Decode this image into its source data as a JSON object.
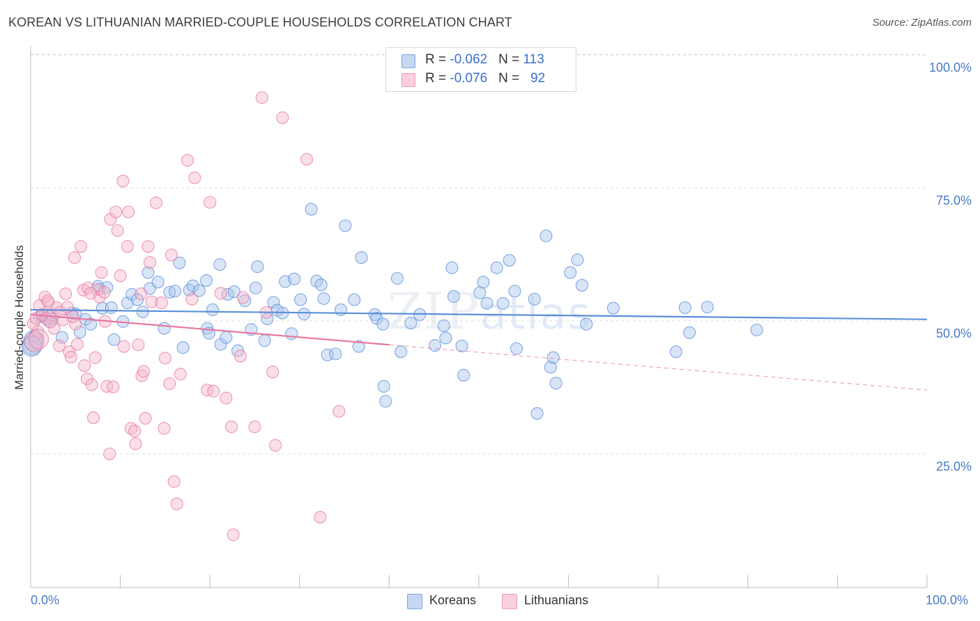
{
  "title": "KOREAN VS LITHUANIAN MARRIED-COUPLE HOUSEHOLDS CORRELATION CHART",
  "source": "Source: ZipAtlas.com",
  "watermark": {
    "zip": "ZIP",
    "atlas": "atlas"
  },
  "legend_top": {
    "rows": [
      {
        "r_label": "R = ",
        "r_value": "-0.062",
        "n_label": "N = ",
        "n_value": "113",
        "color": "#a9c5ee"
      },
      {
        "r_label": "R = ",
        "r_value": "-0.076",
        "n_label": "N = ",
        "n_value": "92",
        "color": "#f5b8cb"
      }
    ]
  },
  "legend_bottom": [
    {
      "label": "Koreans",
      "color": "#a9c5ee"
    },
    {
      "label": "Lithuanians",
      "color": "#f5b8cb"
    }
  ],
  "chart_data": {
    "type": "scatter",
    "title": "KOREAN VS LITHUANIAN MARRIED-COUPLE HOUSEHOLDS CORRELATION CHART",
    "xlabel": "",
    "ylabel": "Married-couple Households",
    "xlim": [
      0,
      100
    ],
    "ylim": [
      0,
      100
    ],
    "x_tick_labels": [
      "0.0%",
      "100.0%"
    ],
    "y_tick_labels": [
      "100.0%",
      "75.0%",
      "50.0%",
      "25.0%"
    ],
    "y_tick_values": [
      100,
      75,
      50,
      25
    ],
    "grid": true,
    "legend_position": "top-center",
    "series": [
      {
        "name": "Koreans",
        "color": "#5b8fd8",
        "fill": "#a9c5ee",
        "trend": {
          "x0": 0,
          "y0": 52.1,
          "x1": 100,
          "y1": 50.3,
          "solid_until": 100
        },
        "points": [
          [
            0.2,
            45.5
          ],
          [
            0.3,
            46.3
          ],
          [
            0.8,
            46.7
          ],
          [
            1.3,
            51.0
          ],
          [
            1.9,
            51.0
          ],
          [
            2.4,
            50.4
          ],
          [
            3.5,
            46.9
          ],
          [
            4.6,
            51.5
          ],
          [
            5.5,
            47.9
          ],
          [
            6.1,
            50.3
          ],
          [
            6.7,
            49.4
          ],
          [
            7.7,
            56.0
          ],
          [
            8.5,
            56.3
          ],
          [
            8.0,
            52.4
          ],
          [
            9.3,
            46.5
          ],
          [
            10.3,
            49.9
          ],
          [
            10.8,
            53.4
          ],
          [
            11.3,
            55.0
          ],
          [
            11.9,
            54.0
          ],
          [
            12.5,
            51.7
          ],
          [
            13.1,
            59.1
          ],
          [
            13.3,
            56.1
          ],
          [
            14.2,
            57.3
          ],
          [
            14.9,
            48.6
          ],
          [
            15.5,
            55.4
          ],
          [
            16.1,
            55.6
          ],
          [
            16.6,
            60.9
          ],
          [
            17.0,
            45.0
          ],
          [
            17.7,
            55.8
          ],
          [
            18.1,
            56.6
          ],
          [
            18.8,
            55.7
          ],
          [
            19.6,
            57.6
          ],
          [
            19.7,
            48.6
          ],
          [
            19.9,
            47.7
          ],
          [
            20.3,
            52.1
          ],
          [
            21.2,
            45.6
          ],
          [
            21.8,
            46.9
          ],
          [
            21.1,
            60.6
          ],
          [
            22.0,
            55.0
          ],
          [
            22.7,
            55.5
          ],
          [
            23.1,
            44.4
          ],
          [
            23.9,
            53.8
          ],
          [
            24.6,
            48.4
          ],
          [
            25.1,
            56.2
          ],
          [
            25.3,
            60.2
          ],
          [
            26.1,
            46.3
          ],
          [
            26.4,
            50.4
          ],
          [
            27.1,
            53.5
          ],
          [
            27.5,
            52.0
          ],
          [
            28.1,
            51.5
          ],
          [
            28.4,
            57.4
          ],
          [
            29.1,
            47.6
          ],
          [
            29.4,
            57.9
          ],
          [
            30.1,
            54.0
          ],
          [
            30.5,
            51.3
          ],
          [
            31.3,
            71.0
          ],
          [
            31.9,
            57.5
          ],
          [
            32.4,
            56.8
          ],
          [
            32.7,
            54.2
          ],
          [
            33.1,
            43.6
          ],
          [
            34.0,
            43.8
          ],
          [
            34.6,
            52.1
          ],
          [
            35.1,
            67.9
          ],
          [
            36.1,
            54.0
          ],
          [
            36.6,
            45.2
          ],
          [
            36.9,
            61.9
          ],
          [
            38.4,
            51.2
          ],
          [
            38.6,
            50.5
          ],
          [
            39.3,
            49.4
          ],
          [
            39.4,
            37.7
          ],
          [
            39.6,
            34.9
          ],
          [
            40.9,
            58.0
          ],
          [
            41.3,
            44.2
          ],
          [
            42.4,
            49.6
          ],
          [
            43.4,
            51.2
          ],
          [
            45.1,
            45.4
          ],
          [
            46.1,
            49.1
          ],
          [
            46.3,
            46.8
          ],
          [
            47.0,
            60.0
          ],
          [
            47.2,
            54.6
          ],
          [
            48.1,
            45.3
          ],
          [
            48.3,
            39.8
          ],
          [
            50.1,
            55.3
          ],
          [
            50.5,
            57.3
          ],
          [
            50.9,
            53.3
          ],
          [
            52.0,
            60.0
          ],
          [
            52.7,
            53.3
          ],
          [
            53.4,
            61.4
          ],
          [
            54.0,
            55.6
          ],
          [
            54.2,
            44.8
          ],
          [
            56.2,
            54.1
          ],
          [
            56.5,
            32.6
          ],
          [
            57.5,
            66.0
          ],
          [
            58.0,
            41.3
          ],
          [
            58.3,
            43.1
          ],
          [
            58.6,
            38.3
          ],
          [
            60.2,
            59.1
          ],
          [
            61.0,
            61.5
          ],
          [
            61.5,
            56.7
          ],
          [
            62.0,
            49.4
          ],
          [
            65.0,
            52.4
          ],
          [
            72.0,
            44.2
          ],
          [
            73.0,
            52.5
          ],
          [
            73.5,
            47.8
          ],
          [
            75.5,
            52.6
          ],
          [
            81.0,
            48.3
          ],
          [
            0.1,
            45.2
          ],
          [
            0.5,
            47.2
          ],
          [
            1.0,
            50.8
          ],
          [
            2.0,
            50.0
          ],
          [
            5.0,
            51.3
          ],
          [
            7.5,
            56.5
          ],
          [
            9.0,
            52.5
          ]
        ]
      },
      {
        "name": "Lithuanians",
        "color": "#e8779f",
        "fill": "#f5b8cb",
        "trend": {
          "x0": 0,
          "y0": 51.2,
          "x1": 100,
          "y1": 37.0,
          "solid_until": 40
        },
        "points": [
          [
            0.3,
            49.5
          ],
          [
            0.4,
            46.0
          ],
          [
            0.6,
            50.5
          ],
          [
            1.0,
            52.9
          ],
          [
            1.3,
            51.2
          ],
          [
            1.6,
            54.5
          ],
          [
            1.7,
            50.5
          ],
          [
            2.0,
            53.4
          ],
          [
            2.4,
            51.1
          ],
          [
            2.6,
            48.6
          ],
          [
            2.9,
            52.5
          ],
          [
            3.2,
            45.3
          ],
          [
            3.3,
            51.7
          ],
          [
            3.9,
            55.1
          ],
          [
            4.1,
            52.6
          ],
          [
            4.3,
            44.2
          ],
          [
            4.5,
            43.2
          ],
          [
            4.9,
            61.9
          ],
          [
            5.0,
            49.4
          ],
          [
            5.2,
            45.6
          ],
          [
            5.6,
            64.0
          ],
          [
            5.9,
            55.8
          ],
          [
            6.0,
            41.6
          ],
          [
            6.3,
            39.1
          ],
          [
            6.4,
            56.2
          ],
          [
            6.8,
            38.0
          ],
          [
            7.0,
            31.8
          ],
          [
            7.2,
            43.1
          ],
          [
            7.4,
            55.9
          ],
          [
            7.7,
            54.5
          ],
          [
            7.9,
            59.1
          ],
          [
            8.2,
            55.4
          ],
          [
            8.3,
            49.9
          ],
          [
            8.5,
            37.7
          ],
          [
            8.8,
            25.0
          ],
          [
            8.9,
            69.1
          ],
          [
            9.2,
            37.6
          ],
          [
            9.5,
            70.5
          ],
          [
            9.7,
            67.0
          ],
          [
            10.0,
            58.5
          ],
          [
            10.3,
            76.3
          ],
          [
            10.4,
            45.2
          ],
          [
            10.8,
            64.0
          ],
          [
            10.9,
            70.5
          ],
          [
            11.2,
            29.8
          ],
          [
            11.6,
            29.3
          ],
          [
            11.7,
            26.9
          ],
          [
            12.3,
            55.1
          ],
          [
            12.4,
            39.7
          ],
          [
            12.6,
            40.5
          ],
          [
            12.8,
            31.7
          ],
          [
            13.1,
            64.0
          ],
          [
            13.3,
            61.0
          ],
          [
            13.5,
            53.6
          ],
          [
            14.0,
            72.2
          ],
          [
            14.6,
            53.4
          ],
          [
            14.9,
            29.8
          ],
          [
            15.5,
            38.2
          ],
          [
            15.7,
            62.4
          ],
          [
            16.0,
            19.8
          ],
          [
            16.3,
            15.6
          ],
          [
            16.7,
            40.0
          ],
          [
            17.5,
            80.2
          ],
          [
            18.0,
            54.1
          ],
          [
            18.3,
            76.9
          ],
          [
            19.7,
            37.0
          ],
          [
            20.0,
            72.3
          ],
          [
            20.4,
            36.8
          ],
          [
            21.2,
            55.2
          ],
          [
            21.8,
            35.5
          ],
          [
            22.4,
            30.1
          ],
          [
            22.6,
            9.8
          ],
          [
            23.4,
            43.4
          ],
          [
            23.7,
            54.4
          ],
          [
            25.0,
            30.1
          ],
          [
            25.8,
            92.0
          ],
          [
            26.3,
            51.6
          ],
          [
            27.0,
            40.4
          ],
          [
            27.3,
            26.6
          ],
          [
            28.1,
            88.2
          ],
          [
            30.8,
            80.4
          ],
          [
            32.3,
            13.1
          ],
          [
            34.4,
            33.0
          ],
          [
            0.8,
            48.0
          ],
          [
            2.2,
            49.8
          ],
          [
            3.6,
            50.2
          ],
          [
            4.7,
            50.8
          ],
          [
            1.9,
            53.8
          ],
          [
            0.9,
            46.6
          ],
          [
            6.7,
            55.2
          ],
          [
            15.0,
            43.0
          ],
          [
            12.0,
            45.5
          ]
        ]
      }
    ]
  }
}
